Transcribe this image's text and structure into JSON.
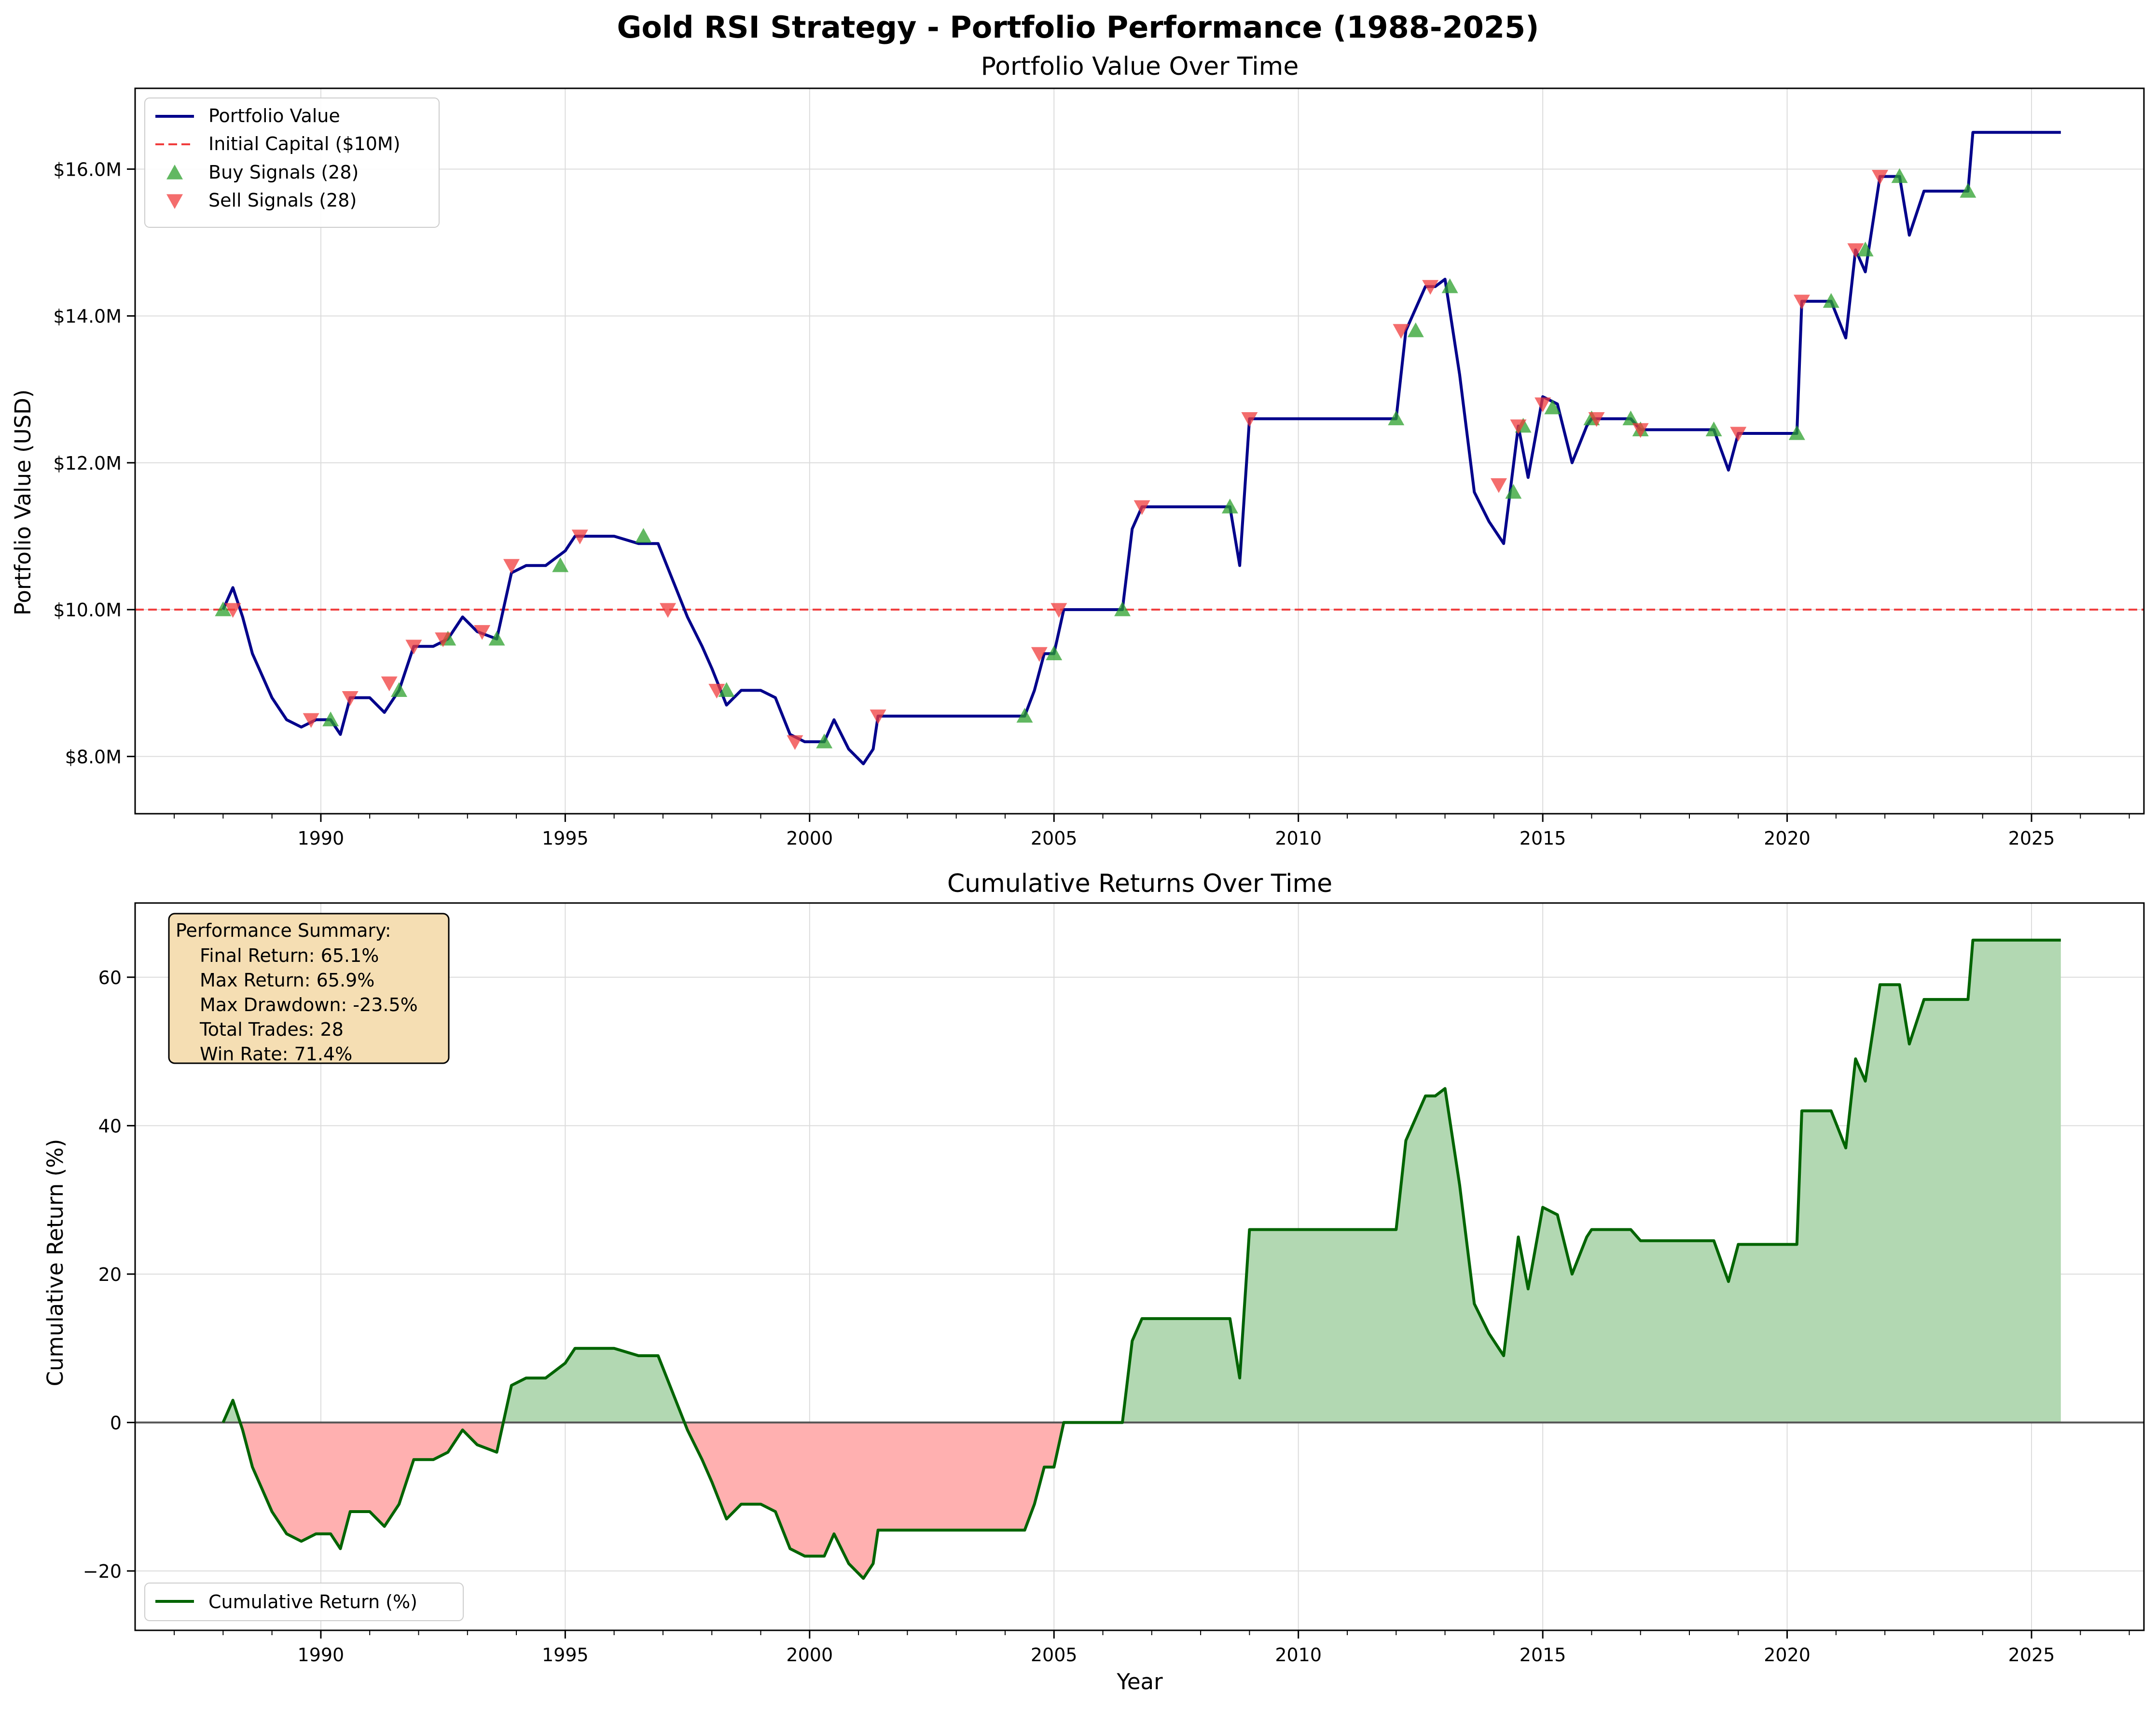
{
  "figure": {
    "suptitle": "Gold RSI Strategy - Portfolio Performance (1988-2025)"
  },
  "chart_data": [
    {
      "type": "line",
      "title": "Portfolio Value Over Time",
      "xlabel": "",
      "ylabel": "Portfolio Value (USD)",
      "xlim": [
        1986.2,
        2027.3
      ],
      "ylim": [
        7.22,
        17.1
      ],
      "x_ticks": [
        1990,
        1995,
        2000,
        2005,
        2010,
        2015,
        2020,
        2025
      ],
      "x_tick_labels": [
        "1990",
        "1995",
        "2000",
        "2005",
        "2010",
        "2015",
        "2020",
        "2025"
      ],
      "y_ticks": [
        8,
        10,
        12,
        14,
        16
      ],
      "y_tick_labels": [
        "$8.0M",
        "$10.0M",
        "$12.0M",
        "$14.0M",
        "$16.0M"
      ],
      "grid": true,
      "legend_position": "upper-left",
      "reference_line": {
        "name": "Initial Capital ($10M)",
        "y": 10.0,
        "color": "#f03c3c",
        "style": "dashed"
      },
      "series": [
        {
          "name": "Portfolio Value",
          "color": "#00008b",
          "x": [
            1988.0,
            1988.2,
            1988.4,
            1988.6,
            1988.8,
            1989.0,
            1989.3,
            1989.6,
            1989.9,
            1990.2,
            1990.4,
            1990.6,
            1991.0,
            1991.3,
            1991.6,
            1991.9,
            1992.3,
            1992.6,
            1992.9,
            1993.2,
            1993.6,
            1993.9,
            1994.2,
            1994.6,
            1995.0,
            1995.2,
            1996.0,
            1996.5,
            1996.9,
            1997.2,
            1997.5,
            1997.8,
            1998.0,
            1998.3,
            1998.6,
            1999.0,
            1999.3,
            1999.6,
            1999.9,
            2000.3,
            2000.5,
            2000.8,
            2001.1,
            2001.3,
            2001.4,
            2004.4,
            2004.6,
            2004.8,
            2005.0,
            2005.2,
            2006.4,
            2006.6,
            2006.8,
            2007.0,
            2008.6,
            2008.8,
            2009.0,
            2009.1,
            2012.0,
            2012.2,
            2012.6,
            2012.8,
            2013.0,
            2013.3,
            2013.6,
            2013.9,
            2014.2,
            2014.5,
            2014.7,
            2015.0,
            2015.3,
            2015.6,
            2015.9,
            2016.0,
            2016.8,
            2017.0,
            2018.5,
            2018.8,
            2019.0,
            2020.2,
            2020.3,
            2020.9,
            2021.2,
            2021.4,
            2021.6,
            2021.9,
            2022.3,
            2022.5,
            2022.8,
            2023.0,
            2023.7,
            2023.8,
            2025.6
          ],
          "y": [
            10.0,
            10.3,
            9.9,
            9.4,
            9.1,
            8.8,
            8.5,
            8.4,
            8.5,
            8.5,
            8.3,
            8.8,
            8.8,
            8.6,
            8.9,
            9.5,
            9.5,
            9.6,
            9.9,
            9.7,
            9.6,
            10.5,
            10.6,
            10.6,
            10.8,
            11.0,
            11.0,
            10.9,
            10.9,
            10.4,
            9.9,
            9.5,
            9.2,
            8.7,
            8.9,
            8.9,
            8.8,
            8.3,
            8.2,
            8.2,
            8.5,
            8.1,
            7.9,
            8.1,
            8.55,
            8.55,
            8.9,
            9.4,
            9.4,
            10.0,
            10.0,
            11.1,
            11.4,
            11.4,
            11.4,
            10.6,
            12.6,
            12.6,
            12.6,
            13.8,
            14.4,
            14.4,
            14.5,
            13.2,
            11.6,
            11.2,
            10.9,
            12.5,
            11.8,
            12.9,
            12.8,
            12.0,
            12.5,
            12.6,
            12.6,
            12.45,
            12.45,
            11.9,
            12.4,
            12.4,
            14.2,
            14.2,
            13.7,
            14.9,
            14.6,
            15.9,
            15.9,
            15.1,
            15.7,
            15.7,
            15.7,
            16.5,
            16.5
          ]
        }
      ],
      "markers": [
        {
          "name": "Buy Signals (28)",
          "color": "#2ca02c",
          "shape": "triangle-up",
          "x": [
            1988.0,
            1990.2,
            1991.6,
            1992.6,
            1993.6,
            1994.9,
            1996.6,
            1998.3,
            2000.3,
            2004.4,
            2005.0,
            2006.4,
            2008.6,
            2012.0,
            2012.4,
            2013.1,
            2014.4,
            2014.6,
            2015.2,
            2016.8,
            2018.5,
            2020.2,
            2020.9,
            2021.6,
            2022.3,
            2023.7,
            2016.0,
            2017.0
          ],
          "y": [
            10.0,
            8.5,
            8.9,
            9.6,
            9.6,
            10.6,
            11.0,
            8.9,
            8.2,
            8.55,
            9.4,
            10.0,
            11.4,
            12.6,
            13.8,
            14.4,
            11.6,
            12.5,
            12.75,
            12.6,
            12.45,
            12.4,
            14.2,
            14.9,
            15.9,
            15.7,
            12.6,
            12.45
          ]
        },
        {
          "name": "Sell Signals (28)",
          "color": "#f03c3c",
          "shape": "triangle-down",
          "x": [
            1988.2,
            1989.8,
            1990.6,
            1991.4,
            1991.9,
            1992.5,
            1993.3,
            1993.9,
            1995.3,
            1997.1,
            1998.1,
            1999.7,
            2001.4,
            2004.7,
            2005.1,
            2006.8,
            2009.0,
            2012.1,
            2012.7,
            2014.1,
            2014.5,
            2015.0,
            2016.1,
            2017.0,
            2019.0,
            2020.3,
            2021.4,
            2021.9
          ],
          "y": [
            10.0,
            8.5,
            8.8,
            9.0,
            9.5,
            9.6,
            9.7,
            10.6,
            11.0,
            10.0,
            8.9,
            8.2,
            8.55,
            9.4,
            10.0,
            11.4,
            12.6,
            13.8,
            14.4,
            11.7,
            12.5,
            12.8,
            12.6,
            12.45,
            12.4,
            14.2,
            14.9,
            15.9
          ]
        }
      ]
    },
    {
      "type": "area",
      "title": "Cumulative Returns Over Time",
      "xlabel": "Year",
      "ylabel": "Cumulative Return (%)",
      "xlim": [
        1986.2,
        2027.3
      ],
      "ylim": [
        -28,
        70
      ],
      "x_ticks": [
        1990,
        1995,
        2000,
        2005,
        2010,
        2015,
        2020,
        2025
      ],
      "x_tick_labels": [
        "1990",
        "1995",
        "2000",
        "2005",
        "2010",
        "2015",
        "2020",
        "2025"
      ],
      "y_ticks": [
        -20,
        0,
        20,
        40,
        60
      ],
      "y_tick_labels": [
        "−20",
        "0",
        "20",
        "40",
        "60"
      ],
      "grid": true,
      "legend_position": "lower-left",
      "positive_fill": "#b2d8b2",
      "negative_fill": "#ffb0b0",
      "series": [
        {
          "name": "Cumulative Return (%)",
          "color": "#006400",
          "derived_from": "Portfolio Value",
          "baseline": 10.0
        }
      ],
      "annotation": {
        "heading": "Performance Summary:",
        "lines": [
          "Final Return: 65.1%",
          "Max Return: 65.9%",
          "Max Drawdown: -23.5%",
          "Total Trades: 28",
          "Win Rate: 71.4%"
        ],
        "background": "#f5deb3"
      }
    }
  ]
}
